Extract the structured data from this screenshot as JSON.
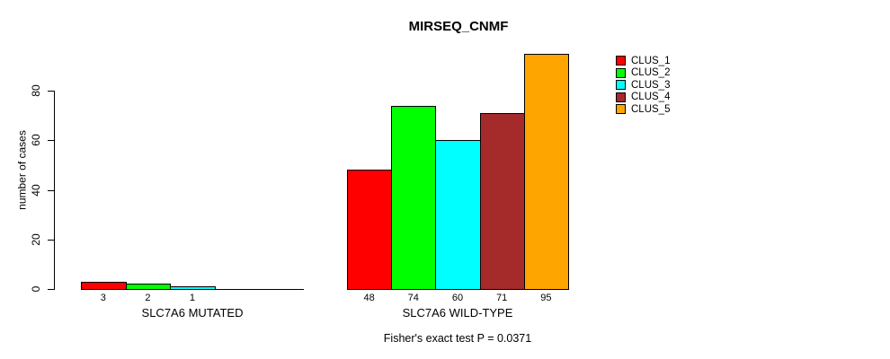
{
  "chart_data": {
    "type": "bar",
    "title": "MIRSEQ_CNMF",
    "ylabel": "number of cases",
    "xlabel": "",
    "ylim": [
      0,
      95
    ],
    "yticks": [
      0,
      20,
      40,
      60,
      80
    ],
    "grid": false,
    "legend_position": "right",
    "legend": [
      {
        "label": "CLUS_1",
        "color": "#FF0000"
      },
      {
        "label": "CLUS_2",
        "color": "#00FF00"
      },
      {
        "label": "CLUS_3",
        "color": "#00FFFF"
      },
      {
        "label": "CLUS_4",
        "color": "#A52A2A"
      },
      {
        "label": "CLUS_5",
        "color": "#FFA500"
      }
    ],
    "groups": [
      {
        "label": "SLC7A6 MUTATED",
        "series": [
          "CLUS_1",
          "CLUS_2",
          "CLUS_3",
          "CLUS_4",
          "CLUS_5"
        ],
        "values": [
          3,
          2,
          1,
          0,
          0
        ],
        "bar_labels": [
          "3",
          "2",
          "1",
          "",
          ""
        ]
      },
      {
        "label": "SLC7A6 WILD-TYPE",
        "series": [
          "CLUS_1",
          "CLUS_2",
          "CLUS_3",
          "CLUS_4",
          "CLUS_5"
        ],
        "values": [
          48,
          74,
          60,
          71,
          95
        ],
        "bar_labels": [
          "48",
          "74",
          "60",
          "71",
          "95"
        ]
      }
    ],
    "annotation": "Fisher's exact test P = 0.0371"
  }
}
